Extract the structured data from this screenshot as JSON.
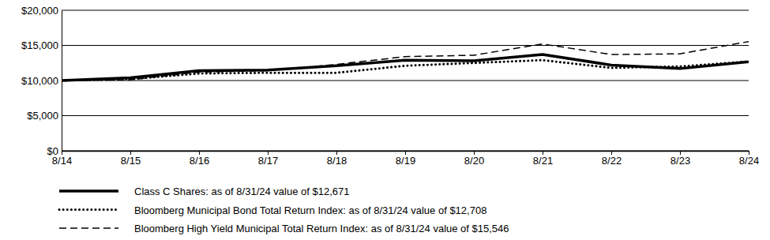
{
  "chart_data": {
    "type": "line",
    "categories": [
      "8/14",
      "8/15",
      "8/16",
      "8/17",
      "8/18",
      "8/19",
      "8/20",
      "8/21",
      "8/22",
      "8/23",
      "8/24"
    ],
    "series": [
      {
        "name": "Class C Shares: as of 8/31/24 value of $12,671",
        "color": "#000000",
        "line_style": "solid",
        "values": [
          10000,
          10400,
          11400,
          11500,
          12100,
          12900,
          12800,
          13700,
          12200,
          11700,
          12671
        ]
      },
      {
        "name": "Bloomberg Municipal Bond Total Return Index: as of 8/31/24 value of $12,708",
        "color": "#000000",
        "line_style": "dotted",
        "values": [
          10000,
          10200,
          11000,
          11100,
          11100,
          12100,
          12500,
          12900,
          11800,
          12000,
          12708
        ]
      },
      {
        "name": "Bloomberg High Yield Municipal Total Return Index: as of 8/31/24 value of $15,546",
        "color": "#000000",
        "line_style": "dashed",
        "values": [
          10000,
          10100,
          11200,
          11400,
          12300,
          13400,
          13600,
          15200,
          13700,
          13800,
          15546
        ]
      }
    ],
    "ylim": [
      0,
      20000
    ],
    "yticks": [
      {
        "value": 0,
        "label": "$0"
      },
      {
        "value": 5000,
        "label": "$5,000"
      },
      {
        "value": 10000,
        "label": "$10,000"
      },
      {
        "value": 15000,
        "label": "$15,000"
      },
      {
        "value": 20000,
        "label": "$20,000"
      }
    ],
    "grid": true,
    "legend": "bottom"
  }
}
